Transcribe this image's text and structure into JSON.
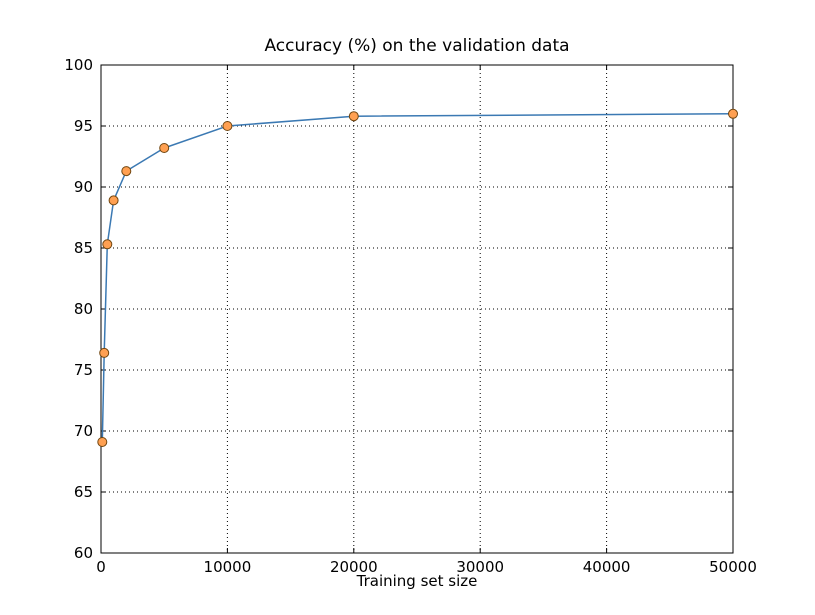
{
  "chart_data": {
    "type": "line",
    "title": "Accuracy (%) on the validation data",
    "xlabel": "Training set size",
    "ylabel": "",
    "x": [
      100,
      250,
      500,
      1000,
      2000,
      5000,
      10000,
      20000,
      50000
    ],
    "y": [
      69.1,
      76.4,
      85.3,
      88.9,
      91.3,
      93.2,
      95.0,
      95.8,
      96.0
    ],
    "xlim": [
      0,
      50000
    ],
    "ylim": [
      60,
      100
    ],
    "xticks": [
      0,
      10000,
      20000,
      30000,
      40000,
      50000
    ],
    "yticks": [
      60,
      65,
      70,
      75,
      80,
      85,
      90,
      95,
      100
    ],
    "grid": true,
    "grid_style": "dotted",
    "grid_color": "#000000",
    "line_color": "#3b79b3",
    "marker_fill": "#ffa052",
    "marker_edge": "#70450f",
    "frame_color": "#000000",
    "background_color": "#ffffff"
  }
}
